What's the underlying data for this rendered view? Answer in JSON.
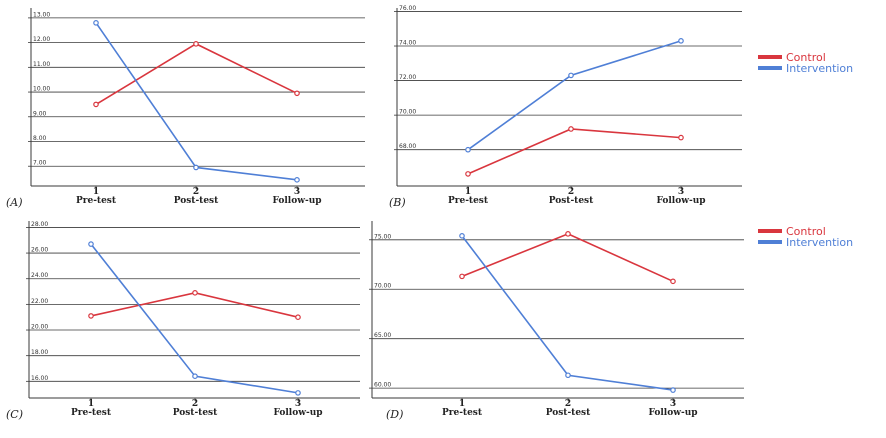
{
  "colors": {
    "control": "#d9363e",
    "intervention": "#4f7fd6",
    "grid": "#3a3a3a"
  },
  "legends": [
    {
      "items": [
        {
          "label": "Control",
          "series": "control"
        },
        {
          "label": "Intervention",
          "series": "intervention"
        }
      ]
    },
    {
      "items": [
        {
          "label": "Control",
          "series": "control"
        },
        {
          "label": "Intervention",
          "series": "intervention"
        }
      ]
    }
  ],
  "chart_data": [
    {
      "type": "line",
      "panel_label": "(A)",
      "categories": [
        "Pre-test",
        "Post-test",
        "Follow-up"
      ],
      "category_numbers": [
        "1",
        "2",
        "3"
      ],
      "yticks": [
        "7.00",
        "8.00",
        "9.00",
        "10.00",
        "11.00",
        "12.00",
        "13.00"
      ],
      "ylim": [
        6.2,
        13.4
      ],
      "series": [
        {
          "name": "Control",
          "key": "control",
          "values": [
            9.5,
            11.95,
            9.95
          ]
        },
        {
          "name": "Intervention",
          "key": "intervention",
          "values": [
            12.8,
            6.95,
            6.45
          ]
        }
      ]
    },
    {
      "type": "line",
      "panel_label": "(B)",
      "categories": [
        "Pre-test",
        "Post-test",
        "Follow-up"
      ],
      "category_numbers": [
        "1",
        "2",
        "3"
      ],
      "yticks": [
        "68.00",
        "70.00",
        "72.00",
        "74.00",
        "76.00"
      ],
      "ylim": [
        65.9,
        76.2
      ],
      "series": [
        {
          "name": "Control",
          "key": "control",
          "values": [
            66.6,
            69.2,
            68.7
          ]
        },
        {
          "name": "Intervention",
          "key": "intervention",
          "values": [
            68.0,
            72.3,
            74.3
          ]
        }
      ]
    },
    {
      "type": "line",
      "panel_label": "(C)",
      "categories": [
        "Pre-test",
        "Post-test",
        "Follow-up"
      ],
      "category_numbers": [
        "1",
        "2",
        "3"
      ],
      "yticks": [
        "16.00",
        "18.00",
        "20.00",
        "22.00",
        "24.00",
        "26.00",
        "28.00"
      ],
      "ylim": [
        14.7,
        28.5
      ],
      "series": [
        {
          "name": "Control",
          "key": "control",
          "values": [
            21.1,
            22.9,
            21.0
          ]
        },
        {
          "name": "Intervention",
          "key": "intervention",
          "values": [
            26.7,
            16.4,
            15.1
          ]
        }
      ]
    },
    {
      "type": "line",
      "panel_label": "(D)",
      "categories": [
        "Pre-test",
        "Post-test",
        "Follow-up"
      ],
      "category_numbers": [
        "1",
        "2",
        "3"
      ],
      "yticks": [
        "60.00",
        "65.00",
        "70.00",
        "75.00"
      ],
      "ylim": [
        59.0,
        76.9
      ],
      "series": [
        {
          "name": "Control",
          "key": "control",
          "values": [
            71.3,
            75.6,
            70.8
          ]
        },
        {
          "name": "Intervention",
          "key": "intervention",
          "values": [
            75.4,
            61.3,
            59.8
          ]
        }
      ]
    }
  ]
}
